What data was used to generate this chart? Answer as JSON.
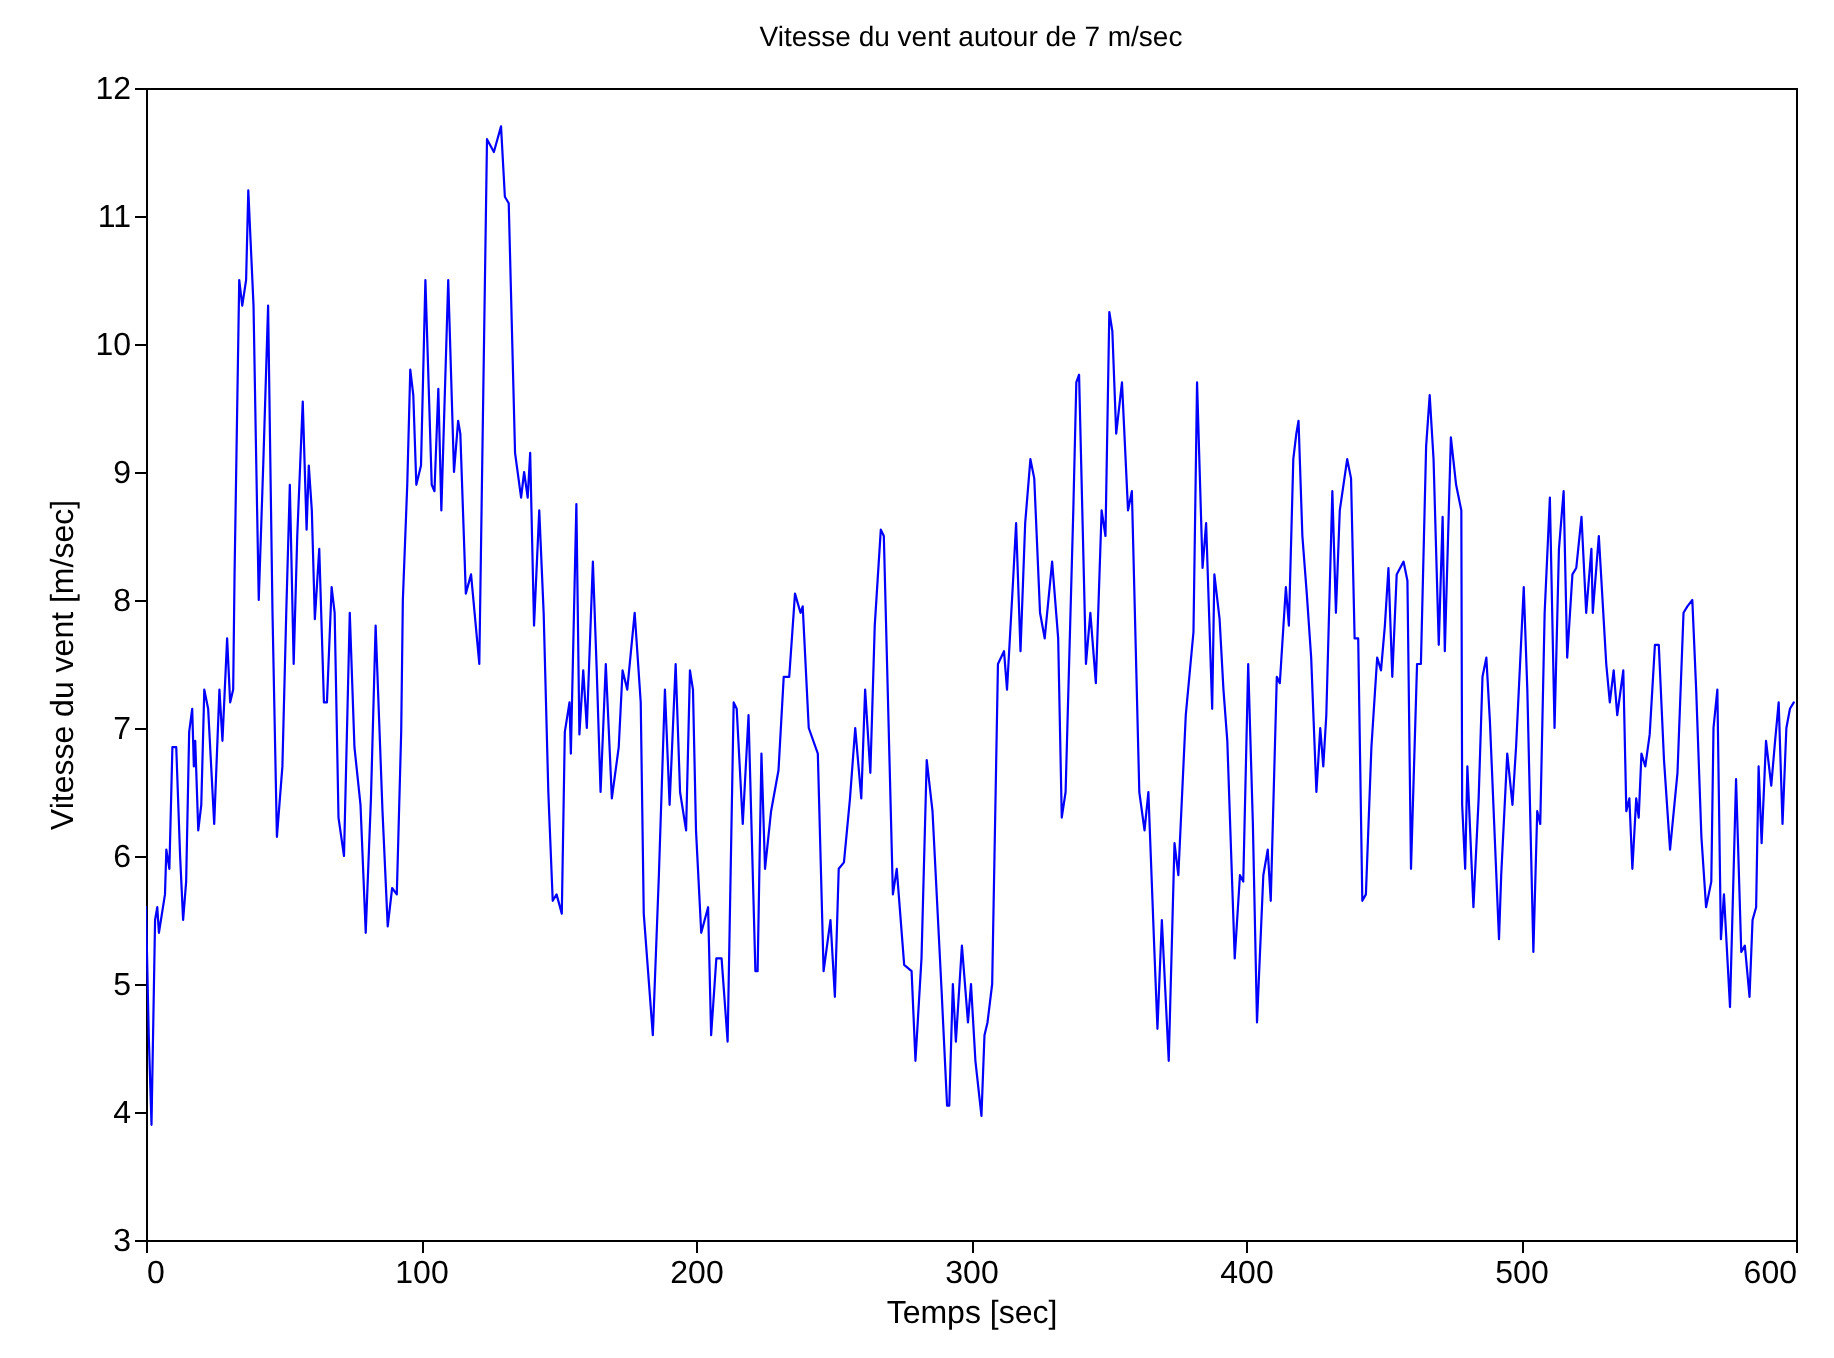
{
  "chart_data": {
    "type": "line",
    "title": "Vitesse du vent autour de 7 m/sec",
    "xlabel": "Temps [sec]",
    "ylabel": "Vitesse du vent [m/sec]",
    "xlim": [
      0,
      600
    ],
    "xticks": [
      0,
      100,
      200,
      300,
      400,
      500,
      600
    ],
    "ylim": [
      3,
      12
    ],
    "yticks": [
      3,
      4,
      5,
      6,
      7,
      8,
      9,
      10,
      11,
      12
    ],
    "grid": false,
    "legend": false,
    "marker": "none",
    "line_style": "solid",
    "series": [
      {
        "color": "#0000ff",
        "x": [
          0,
          1,
          2,
          3.3,
          4.1,
          4.7,
          6.9,
          7.4,
          8.5,
          9.6,
          11,
          12.4,
          13.5,
          14.6,
          15.7,
          16.8,
          17.4,
          17.9,
          19,
          20.1,
          21.2,
          22.6,
          24.8,
          26.7,
          27.8,
          29.5,
          30.6,
          31.7,
          32.2,
          33.9,
          35,
          36.4,
          37.2,
          39.1,
          39.9,
          41,
          42.7,
          44.4,
          46,
          47.6,
          49.6,
          51,
          52.3,
          53.7,
          55,
          57,
          58.4,
          59.2,
          60.3,
          61.4,
          63,
          64.7,
          65.8,
          67.5,
          68.6,
          70,
          72,
          74.1,
          75.8,
          78,
          79.9,
          81.8,
          83.5,
          86,
          87.9,
          89.5,
          91.2,
          92.8,
          93.4,
          95,
          96.1,
          97.2,
          98.3,
          100,
          101.6,
          103.9,
          104.9,
          106.3,
          107.4,
          109.9,
          112,
          113.5,
          114.3,
          116.3,
          118.2,
          121.2,
          124,
          126.5,
          129.1,
          130.5,
          131.9,
          134.2,
          136.4,
          137.5,
          138.8,
          139.7,
          141.1,
          143,
          144.6,
          146.3,
          147.9,
          149.3,
          151.2,
          152.3,
          154,
          154.5,
          156.5,
          157.6,
          159,
          160.3,
          162.5,
          163.9,
          165.3,
          167.2,
          169.4,
          171.9,
          173.3,
          175,
          177.7,
          179.9,
          181,
          184.3,
          186.5,
          188.7,
          190.4,
          192.6,
          194.2,
          196.4,
          197.8,
          198.9,
          200,
          201.9,
          204.4,
          205.5,
          207.4,
          209.3,
          211.5,
          213.7,
          214.8,
          217,
          219.1,
          221.6,
          222.4,
          223.8,
          225.1,
          227.3,
          230,
          231.9,
          233.9,
          236,
          238,
          238.8,
          241,
          244.3,
          246.4,
          248.9,
          250.5,
          251.9,
          253.8,
          256,
          257.9,
          260.1,
          261.5,
          263.4,
          265,
          267.2,
          268.3,
          271.6,
          273,
          275.7,
          278.4,
          279.8,
          282,
          283.9,
          286,
          289.3,
          291.3,
          292.1,
          293.4,
          294.5,
          296.7,
          298.9,
          300,
          301.6,
          303.8,
          304.9,
          306,
          307.7,
          309.8,
          312,
          313.1,
          315.3,
          316.4,
          318,
          319.7,
          321.6,
          323,
          325.1,
          326.8,
          329.5,
          331.7,
          333,
          334.4,
          337.2,
          338.3,
          339.3,
          341.8,
          343.4,
          345.4,
          347.5,
          348.9,
          350.3,
          351.4,
          352.8,
          354.9,
          357.1,
          358.5,
          361.2,
          363.1,
          364.5,
          366.7,
          367.8,
          369.4,
          371.9,
          374,
          375.4,
          378.1,
          380.9,
          382.2,
          384.2,
          385.5,
          387.7,
          388.5,
          390.4,
          391.8,
          393.2,
          395.9,
          397.8,
          399,
          400.8,
          402.5,
          404,
          406.3,
          407.9,
          409,
          411.2,
          412.3,
          414.5,
          415.6,
          417.2,
          418.3,
          419.1,
          420.5,
          422.1,
          423.7,
          425.6,
          427,
          428.1,
          429.2,
          431.4,
          432.7,
          434.1,
          436.8,
          438.2,
          439.5,
          440.8,
          442.3,
          443.6,
          445.6,
          447.7,
          449.1,
          450.5,
          451.8,
          453.2,
          454.8,
          457.3,
          458.7,
          460,
          462.2,
          463.6,
          465.5,
          466.8,
          468.2,
          470.1,
          471.5,
          472.3,
          474.5,
          476.4,
          478.3,
          478.6,
          479.7,
          480.5,
          482.7,
          484.6,
          486,
          487.4,
          488.7,
          492,
          492.8,
          495,
          496.9,
          498.2,
          501,
          502.3,
          504.5,
          505.9,
          507,
          508.6,
          510.5,
          512.2,
          513.8,
          515.5,
          516.8,
          518.7,
          520.1,
          522,
          523.7,
          525.6,
          526.1,
          528.3,
          531,
          532.3,
          533.7,
          535,
          537.2,
          538.3,
          539.4,
          540.5,
          541.9,
          542.8,
          543.8,
          545.2,
          546.8,
          548.7,
          550.1,
          552,
          554.2,
          556.9,
          559.1,
          560.5,
          562.3,
          563.7,
          565.6,
          567.3,
          569.2,
          570,
          571.4,
          572.7,
          573.8,
          576,
          578.2,
          580.1,
          581.4,
          583.1,
          584.2,
          585.5,
          586.4,
          587.5,
          589.1,
          591,
          592.4,
          593.7,
          595.1,
          596.5,
          597.8,
          599.2
        ],
        "values": [
          5.6,
          4.6,
          3.9,
          5.5,
          5.6,
          5.4,
          5.7,
          6.05,
          5.9,
          6.85,
          6.85,
          6,
          5.5,
          5.8,
          6.97,
          7.15,
          6.7,
          6.9,
          6.2,
          6.4,
          7.3,
          7.15,
          6.25,
          7.3,
          6.9,
          7.7,
          7.2,
          7.3,
          8.2,
          10.5,
          10.3,
          10.5,
          11.2,
          10.3,
          9.3,
          8,
          9.1,
          10.3,
          7.9,
          6.15,
          6.7,
          7.9,
          8.9,
          7.5,
          8.5,
          9.55,
          8.55,
          9.05,
          8.7,
          7.85,
          8.4,
          7.2,
          7.2,
          8.1,
          7.9,
          6.3,
          6,
          7.9,
          6.85,
          6.4,
          5.4,
          6.45,
          7.8,
          6.35,
          5.45,
          5.75,
          5.7,
          6.97,
          8,
          8.9,
          9.8,
          9.6,
          8.9,
          9.05,
          10.5,
          8.9,
          8.85,
          9.65,
          8.7,
          10.5,
          9,
          9.4,
          9.3,
          8.05,
          8.2,
          7.5,
          11.6,
          11.5,
          11.7,
          11.15,
          11.1,
          9.15,
          8.8,
          9,
          8.8,
          9.15,
          7.8,
          8.7,
          7.9,
          6.5,
          5.65,
          5.7,
          5.55,
          6.97,
          7.2,
          6.8,
          8.75,
          6.95,
          7.45,
          7,
          8.3,
          7.45,
          6.5,
          7.5,
          6.45,
          6.85,
          7.45,
          7.3,
          7.9,
          7.2,
          5.55,
          4.6,
          5.85,
          7.3,
          6.4,
          7.5,
          6.5,
          6.2,
          7.45,
          7.3,
          6.2,
          5.4,
          5.6,
          4.6,
          5.2,
          5.2,
          4.55,
          7.2,
          7.15,
          6.25,
          7.1,
          5.1,
          5.1,
          6.8,
          5.9,
          6.35,
          6.67,
          7.4,
          7.4,
          8.05,
          7.9,
          7.95,
          7,
          6.8,
          5.1,
          5.5,
          4.9,
          5.9,
          5.95,
          6.45,
          7,
          6.45,
          7.3,
          6.65,
          7.8,
          8.55,
          8.5,
          5.7,
          5.9,
          5.15,
          5.1,
          4.4,
          5.2,
          6.75,
          6.35,
          4.95,
          4.05,
          4.05,
          5,
          4.55,
          5.3,
          4.7,
          5,
          4.4,
          3.97,
          4.6,
          4.7,
          5,
          7.5,
          7.6,
          7.3,
          8.15,
          8.6,
          7.6,
          8.6,
          9.1,
          8.95,
          7.9,
          7.7,
          8.3,
          7.7,
          6.3,
          6.5,
          8.7,
          9.7,
          9.76,
          7.5,
          7.9,
          7.35,
          8.7,
          8.5,
          10.25,
          10.1,
          9.3,
          9.7,
          8.7,
          8.85,
          6.5,
          6.2,
          6.5,
          5.25,
          4.65,
          5.5,
          4.4,
          6.1,
          5.85,
          7.1,
          7.75,
          9.7,
          8.25,
          8.6,
          7.15,
          8.2,
          7.85,
          7.3,
          6.9,
          5.2,
          5.85,
          5.8,
          7.5,
          6.25,
          4.7,
          5.85,
          6.05,
          5.65,
          7.4,
          7.35,
          8.1,
          7.8,
          9.1,
          9.3,
          9.4,
          8.5,
          8.05,
          7.55,
          6.5,
          7,
          6.7,
          7.1,
          8.85,
          7.9,
          8.7,
          9.1,
          8.95,
          7.7,
          7.7,
          5.65,
          5.7,
          6.85,
          7.55,
          7.45,
          7.8,
          8.25,
          7.4,
          8.2,
          8.3,
          8.15,
          5.9,
          7.5,
          7.5,
          9.2,
          9.6,
          9.1,
          7.65,
          8.65,
          7.6,
          9.27,
          8.9,
          8.7,
          6.4,
          5.9,
          6.7,
          5.6,
          6.45,
          7.4,
          7.55,
          7.05,
          5.35,
          5.85,
          6.8,
          6.4,
          6.85,
          8.1,
          7.3,
          5.25,
          6.35,
          6.25,
          7.9,
          8.8,
          7,
          8.4,
          8.85,
          7.55,
          8.2,
          8.25,
          8.65,
          7.9,
          8.4,
          7.9,
          8.5,
          7.5,
          7.2,
          7.45,
          7.1,
          7.45,
          6.35,
          6.45,
          5.9,
          6.45,
          6.3,
          6.8,
          6.7,
          6.95,
          7.65,
          7.65,
          6.75,
          6.05,
          6.65,
          7.9,
          7.95,
          8,
          7.3,
          6.15,
          5.6,
          5.8,
          7,
          7.3,
          5.35,
          5.7,
          4.82,
          6.6,
          5.25,
          5.3,
          4.9,
          5.5,
          5.6,
          6.7,
          6.1,
          6.9,
          6.55,
          6.9,
          7.2,
          6.25,
          7,
          7.15,
          7.2
        ]
      }
    ]
  }
}
